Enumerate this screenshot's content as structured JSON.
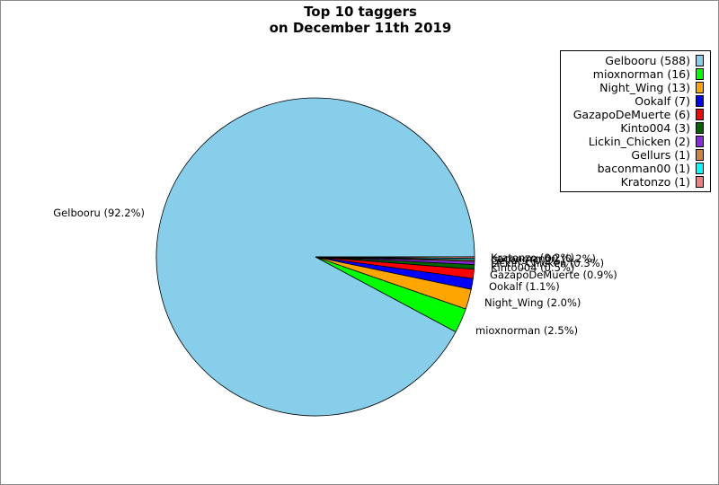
{
  "chart_data": {
    "type": "pie",
    "title": [
      "Top 10 taggers",
      "on December 11th 2019"
    ],
    "slices": [
      {
        "label": "Gelbooru",
        "value": 588,
        "percent": "92.2%",
        "color": "#87ceeb"
      },
      {
        "label": "mioxnorman",
        "value": 16,
        "percent": "2.5%",
        "color": "#00ff00"
      },
      {
        "label": "Night_Wing",
        "value": 13,
        "percent": "2.0%",
        "color": "#ffa500"
      },
      {
        "label": "Ookalf",
        "value": 7,
        "percent": "1.1%",
        "color": "#0000ff"
      },
      {
        "label": "GazapoDeMuerte",
        "value": 6,
        "percent": "0.9%",
        "color": "#ff0000"
      },
      {
        "label": "Kinto004",
        "value": 3,
        "percent": "0.5%",
        "color": "#006400"
      },
      {
        "label": "Lickin_Chicken",
        "value": 2,
        "percent": "0.3%",
        "color": "#8a2be2"
      },
      {
        "label": "Gellurs",
        "value": 1,
        "percent": "0.2%",
        "color": "#cd853f"
      },
      {
        "label": "baconman00",
        "value": 1,
        "percent": "0.2%",
        "color": "#00ffff"
      },
      {
        "label": "Kratonzo",
        "value": 1,
        "percent": "0.2%",
        "color": "#f08080"
      }
    ],
    "legend_placement": "top-right"
  }
}
